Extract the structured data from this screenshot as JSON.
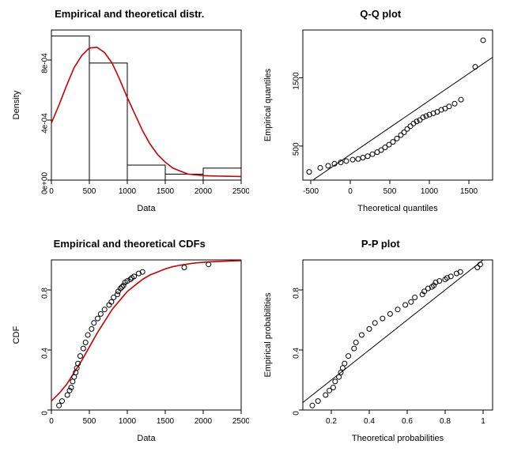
{
  "panels": {
    "hist": {
      "title": "Empirical and theoretical distr.",
      "xlabel": "Data",
      "ylabel": "Density",
      "xlim": [
        0,
        2500
      ],
      "ylim": [
        0,
        0.001
      ],
      "xticks": [
        0,
        500,
        1000,
        1500,
        2000,
        2500
      ],
      "yticks": [
        0,
        0.0004,
        0.0008
      ],
      "ytick_labels": [
        "0e+00",
        "4e-04",
        "8e-04"
      ],
      "bars": [
        {
          "x0": 0,
          "x1": 500,
          "h": 0.00096
        },
        {
          "x0": 500,
          "x1": 1000,
          "h": 0.00078
        },
        {
          "x0": 1000,
          "x1": 1500,
          "h": 0.0001
        },
        {
          "x0": 1500,
          "x1": 2000,
          "h": 4e-05
        },
        {
          "x0": 2000,
          "x1": 2500,
          "h": 8e-05
        }
      ],
      "curve_color": "#cc0000",
      "curve": [
        [
          -50,
          0.00034
        ],
        [
          0,
          0.00038
        ],
        [
          100,
          0.0005
        ],
        [
          200,
          0.00063
        ],
        [
          300,
          0.00075
        ],
        [
          400,
          0.00083
        ],
        [
          500,
          0.00088
        ],
        [
          600,
          0.000885
        ],
        [
          700,
          0.00085
        ],
        [
          800,
          0.00078
        ],
        [
          900,
          0.00067
        ],
        [
          1000,
          0.00055
        ],
        [
          1100,
          0.00044
        ],
        [
          1200,
          0.00033
        ],
        [
          1300,
          0.00024
        ],
        [
          1400,
          0.00017
        ],
        [
          1500,
          0.00012
        ],
        [
          1600,
          8e-05
        ],
        [
          1700,
          6e-05
        ],
        [
          1800,
          4e-05
        ],
        [
          1900,
          3.5e-05
        ],
        [
          2000,
          3e-05
        ],
        [
          2100,
          2.8e-05
        ],
        [
          2200,
          2.7e-05
        ],
        [
          2300,
          2.6e-05
        ],
        [
          2400,
          2.5e-05
        ],
        [
          2500,
          2.4e-05
        ]
      ]
    },
    "qq": {
      "title": "Q-Q plot",
      "xlabel": "Theoretical quantiles",
      "ylabel": "Empirical quantiles",
      "xlim": [
        -600,
        1800
      ],
      "ylim": [
        0,
        2200
      ],
      "xticks": [
        -500,
        0,
        500,
        1000,
        1500
      ],
      "yticks": [
        500,
        1500
      ],
      "line": [
        [
          -600,
          -100
        ],
        [
          1800,
          1800
        ]
      ],
      "points": [
        [
          -520,
          120
        ],
        [
          -380,
          180
        ],
        [
          -280,
          210
        ],
        [
          -200,
          240
        ],
        [
          -120,
          260
        ],
        [
          -50,
          280
        ],
        [
          30,
          300
        ],
        [
          100,
          310
        ],
        [
          160,
          330
        ],
        [
          220,
          350
        ],
        [
          280,
          380
        ],
        [
          340,
          410
        ],
        [
          390,
          440
        ],
        [
          440,
          480
        ],
        [
          490,
          520
        ],
        [
          540,
          560
        ],
        [
          590,
          610
        ],
        [
          640,
          660
        ],
        [
          680,
          700
        ],
        [
          720,
          750
        ],
        [
          760,
          790
        ],
        [
          800,
          830
        ],
        [
          840,
          860
        ],
        [
          880,
          880
        ],
        [
          920,
          920
        ],
        [
          960,
          940
        ],
        [
          1000,
          960
        ],
        [
          1050,
          980
        ],
        [
          1100,
          1000
        ],
        [
          1150,
          1030
        ],
        [
          1200,
          1050
        ],
        [
          1250,
          1080
        ],
        [
          1320,
          1120
        ],
        [
          1400,
          1180
        ],
        [
          1580,
          1660
        ],
        [
          1680,
          2050
        ]
      ]
    },
    "cdf": {
      "title": "Empirical and theoretical CDFs",
      "xlabel": "Data",
      "ylabel": "CDF",
      "xlim": [
        0,
        2500
      ],
      "ylim": [
        0,
        1
      ],
      "xticks": [
        0,
        500,
        1000,
        1500,
        2000,
        2500
      ],
      "yticks": [
        0.0,
        0.4,
        0.8
      ],
      "curve_color": "#cc0000",
      "curve": [
        [
          0,
          0.06
        ],
        [
          100,
          0.11
        ],
        [
          200,
          0.17
        ],
        [
          300,
          0.25
        ],
        [
          400,
          0.33
        ],
        [
          500,
          0.42
        ],
        [
          600,
          0.51
        ],
        [
          700,
          0.59
        ],
        [
          800,
          0.67
        ],
        [
          900,
          0.73
        ],
        [
          1000,
          0.79
        ],
        [
          1100,
          0.83
        ],
        [
          1200,
          0.87
        ],
        [
          1300,
          0.9
        ],
        [
          1400,
          0.92
        ],
        [
          1500,
          0.94
        ],
        [
          1600,
          0.955
        ],
        [
          1700,
          0.965
        ],
        [
          1800,
          0.973
        ],
        [
          1900,
          0.98
        ],
        [
          2000,
          0.984
        ],
        [
          2100,
          0.987
        ],
        [
          2200,
          0.99
        ],
        [
          2300,
          0.992
        ],
        [
          2400,
          0.994
        ],
        [
          2500,
          0.995
        ]
      ],
      "points": [
        [
          100,
          0.03
        ],
        [
          140,
          0.06
        ],
        [
          210,
          0.1
        ],
        [
          240,
          0.13
        ],
        [
          260,
          0.15
        ],
        [
          280,
          0.19
        ],
        [
          300,
          0.22
        ],
        [
          320,
          0.25
        ],
        [
          335,
          0.28
        ],
        [
          350,
          0.31
        ],
        [
          380,
          0.36
        ],
        [
          420,
          0.41
        ],
        [
          450,
          0.45
        ],
        [
          480,
          0.5
        ],
        [
          530,
          0.54
        ],
        [
          560,
          0.58
        ],
        [
          610,
          0.61
        ],
        [
          650,
          0.64
        ],
        [
          700,
          0.67
        ],
        [
          760,
          0.7
        ],
        [
          790,
          0.72
        ],
        [
          820,
          0.75
        ],
        [
          870,
          0.77
        ],
        [
          880,
          0.79
        ],
        [
          910,
          0.81
        ],
        [
          930,
          0.82
        ],
        [
          950,
          0.83
        ],
        [
          970,
          0.85
        ],
        [
          1000,
          0.86
        ],
        [
          1040,
          0.87
        ],
        [
          1060,
          0.88
        ],
        [
          1090,
          0.89
        ],
        [
          1150,
          0.91
        ],
        [
          1200,
          0.92
        ],
        [
          1750,
          0.95
        ],
        [
          2070,
          0.97
        ]
      ]
    },
    "pp": {
      "title": "P-P plot",
      "xlabel": "Theoretical probabilities",
      "ylabel": "Empirical probabilities",
      "xlim": [
        0.05,
        1.05
      ],
      "ylim": [
        0,
        1
      ],
      "xticks": [
        0.2,
        0.4,
        0.6,
        0.8,
        1.0
      ],
      "yticks": [
        0.0,
        0.4,
        0.8
      ],
      "line": [
        [
          0.05,
          0.05
        ],
        [
          1.0,
          1.0
        ]
      ],
      "points": [
        [
          0.1,
          0.03
        ],
        [
          0.13,
          0.06
        ],
        [
          0.17,
          0.1
        ],
        [
          0.19,
          0.13
        ],
        [
          0.21,
          0.15
        ],
        [
          0.22,
          0.19
        ],
        [
          0.24,
          0.22
        ],
        [
          0.25,
          0.25
        ],
        [
          0.26,
          0.28
        ],
        [
          0.27,
          0.31
        ],
        [
          0.29,
          0.36
        ],
        [
          0.32,
          0.41
        ],
        [
          0.33,
          0.45
        ],
        [
          0.36,
          0.5
        ],
        [
          0.4,
          0.54
        ],
        [
          0.43,
          0.58
        ],
        [
          0.47,
          0.61
        ],
        [
          0.51,
          0.64
        ],
        [
          0.55,
          0.67
        ],
        [
          0.59,
          0.7
        ],
        [
          0.62,
          0.72
        ],
        [
          0.64,
          0.75
        ],
        [
          0.68,
          0.77
        ],
        [
          0.69,
          0.79
        ],
        [
          0.71,
          0.81
        ],
        [
          0.73,
          0.82
        ],
        [
          0.74,
          0.83
        ],
        [
          0.75,
          0.85
        ],
        [
          0.77,
          0.86
        ],
        [
          0.8,
          0.87
        ],
        [
          0.81,
          0.88
        ],
        [
          0.83,
          0.89
        ],
        [
          0.86,
          0.91
        ],
        [
          0.88,
          0.92
        ],
        [
          0.97,
          0.95
        ],
        [
          0.985,
          0.97
        ]
      ]
    }
  },
  "plot_style": {
    "bg": "#ffffff",
    "axis_color": "#000000",
    "bar_fill": "#ffffff",
    "bar_stroke": "#000000",
    "point_fill": "none",
    "point_stroke": "#000000",
    "point_r": 3,
    "line_color": "#000000",
    "title_fontsize": 13,
    "label_fontsize": 11,
    "tick_fontsize": 10
  }
}
